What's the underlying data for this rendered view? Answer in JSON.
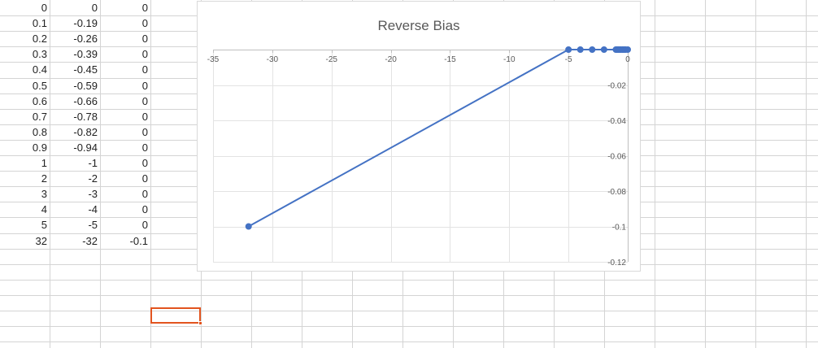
{
  "sheet": {
    "rows": [
      [
        "0",
        "0",
        "0"
      ],
      [
        "0.1",
        "-0.19",
        "0"
      ],
      [
        "0.2",
        "-0.26",
        "0"
      ],
      [
        "0.3",
        "-0.39",
        "0"
      ],
      [
        "0.4",
        "-0.45",
        "0"
      ],
      [
        "0.5",
        "-0.59",
        "0"
      ],
      [
        "0.6",
        "-0.66",
        "0"
      ],
      [
        "0.7",
        "-0.78",
        "0"
      ],
      [
        "0.8",
        "-0.82",
        "0"
      ],
      [
        "0.9",
        "-0.94",
        "0"
      ],
      [
        "1",
        "-1",
        "0"
      ],
      [
        "2",
        "-2",
        "0"
      ],
      [
        "3",
        "-3",
        "0"
      ],
      [
        "4",
        "-4",
        "0"
      ],
      [
        "5",
        "-5",
        "0"
      ],
      [
        "32",
        "-32",
        "-0.1"
      ]
    ]
  },
  "colors": {
    "gridline": "#d4d4d4",
    "series": "#4472c4",
    "selection": "#e2541f",
    "chart_grid": "#e3e3e3",
    "axis": "#bfbfbf"
  },
  "chart_data": {
    "type": "scatter",
    "title": "Reverse Bias",
    "xlabel": "",
    "ylabel": "",
    "xlim": [
      -35,
      0
    ],
    "ylim": [
      -0.12,
      0
    ],
    "xticks": [
      -35,
      -30,
      -25,
      -20,
      -15,
      -10,
      -5,
      0
    ],
    "yticks": [
      -0.02,
      -0.04,
      -0.06,
      -0.08,
      -0.1,
      -0.12
    ],
    "grid": true,
    "legend": "none",
    "x_axis_position": "top",
    "y_axis_position": "right",
    "series": [
      {
        "x": [
          0,
          -0.19,
          -0.26,
          -0.39,
          -0.45,
          -0.59,
          -0.66,
          -0.78,
          -0.82,
          -0.94,
          -1,
          -2,
          -3,
          -4,
          -5,
          -32
        ],
        "y": [
          0,
          0,
          0,
          0,
          0,
          0,
          0,
          0,
          0,
          0,
          0,
          0,
          0,
          0,
          0,
          -0.1
        ],
        "lines": true,
        "markers": true
      }
    ]
  }
}
